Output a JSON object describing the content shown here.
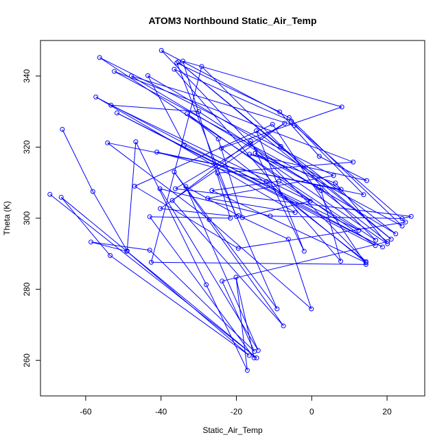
{
  "chart_data": {
    "type": "line",
    "title": "ATOM3 Northbound Static_Air_Temp",
    "xlabel": "Static_Air_Temp",
    "ylabel": "Theta (K)",
    "xlim": [
      -72,
      30
    ],
    "ylim": [
      250,
      350
    ],
    "x_ticks": [
      "-60",
      "-40",
      "-20",
      "0",
      "20"
    ],
    "x_tick_values": [
      -60,
      -40,
      -20,
      0,
      20
    ],
    "y_ticks": [
      "260",
      "280",
      "300",
      "320",
      "340"
    ],
    "y_tick_values": [
      260,
      280,
      300,
      320,
      340
    ],
    "grid": false,
    "line_color": "#0000ff",
    "marker": "open-circle",
    "points": [
      [
        -66.2,
        325.0
      ],
      [
        -58.1,
        307.5
      ],
      [
        -49.0,
        290.8
      ],
      [
        -46.7,
        321.5
      ],
      [
        -28.0,
        281.3
      ],
      [
        -17.1,
        257.2
      ],
      [
        -20.1,
        283.4
      ],
      [
        -15.3,
        260.7
      ],
      [
        -43.0,
        300.4
      ],
      [
        -21.6,
        300.0
      ],
      [
        -34.2,
        344.2
      ],
      [
        8.0,
        331.3
      ],
      [
        -24.0,
        319.7
      ],
      [
        14.4,
        287.8
      ],
      [
        -16.3,
        321.0
      ],
      [
        -39.9,
        347.2
      ],
      [
        -6.0,
        328.3
      ],
      [
        24.0,
        297.8
      ],
      [
        -52.4,
        341.3
      ],
      [
        11.0,
        315.8
      ],
      [
        -25.0,
        312.7
      ],
      [
        -9.2,
        274.5
      ],
      [
        -36.5,
        313.0
      ],
      [
        -7.5,
        269.7
      ],
      [
        -37.0,
        305.0
      ],
      [
        -16.2,
        321.7
      ],
      [
        -2.0,
        290.7
      ],
      [
        -14.7,
        324.6
      ],
      [
        21.1,
        294.1
      ],
      [
        -35.4,
        344.0
      ],
      [
        -8.2,
        320.2
      ],
      [
        22.3,
        295.6
      ],
      [
        -47.9,
        340.0
      ],
      [
        -4.6,
        326.1
      ],
      [
        24.9,
        298.9
      ],
      [
        -19.5,
        291.5
      ],
      [
        -47.0,
        309.0
      ],
      [
        -10.4,
        326.4
      ],
      [
        14.4,
        287.0
      ],
      [
        -42.6,
        287.6
      ],
      [
        -29.2,
        342.7
      ],
      [
        17.0,
        293.8
      ],
      [
        -56.3,
        345.2
      ],
      [
        5.8,
        312.0
      ],
      [
        -27.6,
        305.6
      ],
      [
        -4.4,
        301.6
      ],
      [
        -57.3,
        334.1
      ],
      [
        18.8,
        291.9
      ],
      [
        -51.7,
        329.6
      ],
      [
        16.9,
        292.3
      ],
      [
        -33.1,
        329.4
      ],
      [
        -24.8,
        322.3
      ],
      [
        -18.4,
        300.2
      ],
      [
        -0.4,
        304.8
      ],
      [
        -53.3,
        331.8
      ],
      [
        -30.0,
        330.0
      ],
      [
        2.5,
        307.8
      ],
      [
        7.7,
        287.9
      ],
      [
        -36.5,
        341.9
      ],
      [
        -5.4,
        327.3
      ],
      [
        13.8,
        306.6
      ],
      [
        -41.1,
        318.6
      ],
      [
        -12.0,
        310.3
      ],
      [
        14.4,
        287.5
      ],
      [
        -26.5,
        307.8
      ],
      [
        -8.7,
        310.4
      ],
      [
        12.5,
        296.6
      ],
      [
        -33.8,
        320.6
      ],
      [
        -43.5,
        340.1
      ],
      [
        7.8,
        308.1
      ],
      [
        -54.2,
        321.2
      ],
      [
        -27.2,
        299.6
      ],
      [
        -0.1,
        274.5
      ],
      [
        -6.2,
        294.1
      ],
      [
        -19.4,
        300.7
      ],
      [
        -33.4,
        308.9
      ],
      [
        -14.2,
        262.8
      ],
      [
        -40.3,
        308.3
      ],
      [
        -11.0,
        300.6
      ],
      [
        24.0,
        299.9
      ],
      [
        26.4,
        300.5
      ],
      [
        -36.2,
        308.3
      ],
      [
        -7.2,
        326.7
      ],
      [
        -40.2,
        302.7
      ],
      [
        -20.0,
        300.5
      ],
      [
        -35.8,
        343.7
      ],
      [
        -8.5,
        329.9
      ],
      [
        2.0,
        317.4
      ],
      [
        14.6,
        310.6
      ],
      [
        -16.5,
        318.0
      ],
      [
        6.3,
        309.9
      ],
      [
        20.1,
        292.8
      ],
      [
        -15.0,
        318.3
      ],
      [
        1.8,
        308.6
      ],
      [
        20.1,
        293.4
      ],
      [
        -23.8,
        282.3
      ],
      [
        -15.2,
        262.5
      ],
      [
        -43.0,
        291.0
      ],
      [
        -58.6,
        293.3
      ],
      [
        -49.1,
        290.7
      ],
      [
        -16.6,
        261.4
      ],
      [
        -53.5,
        289.5
      ],
      [
        -66.5,
        305.9
      ],
      [
        -14.6,
        260.7
      ],
      [
        -69.5,
        306.7
      ]
    ]
  }
}
